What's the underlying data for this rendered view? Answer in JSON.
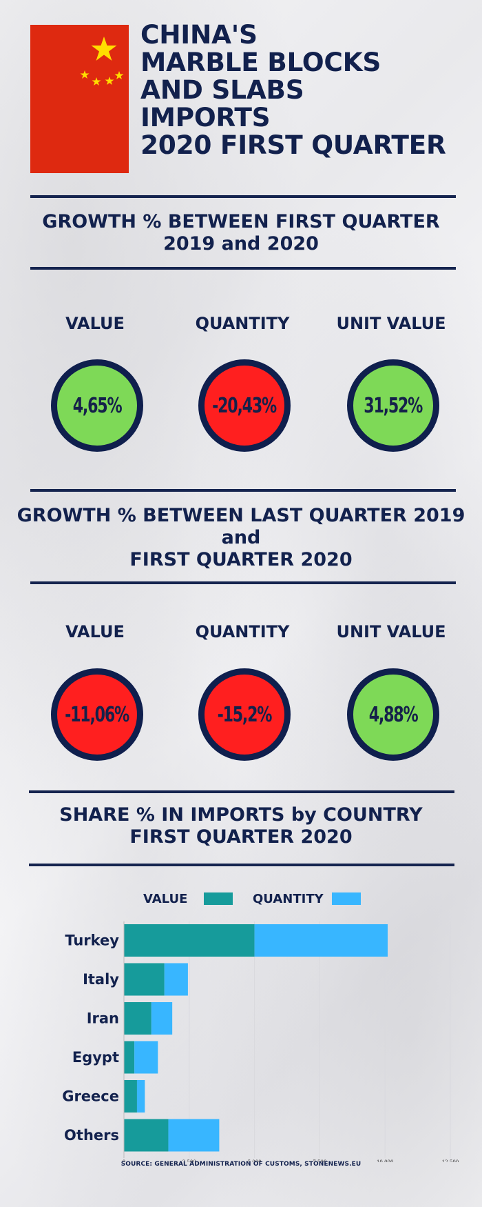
{
  "title_lines": [
    "CHINA'S",
    "MARBLE BLOCKS",
    "AND SLABS",
    "IMPORTS",
    "2020 FIRST QUARTER"
  ],
  "colors": {
    "flag_red": "#de2910",
    "flag_star": "#ffde00",
    "navy": "#12214d",
    "positive": "#7ed957",
    "negative": "#ff1f1f",
    "value_series": "#169b9b",
    "quantity_series": "#38b6ff"
  },
  "section1": {
    "title_line1": "GROWTH % BETWEEN FIRST QUARTER",
    "title_line2": "2019 and 2020",
    "metrics": [
      {
        "label": "VALUE",
        "value": "4,65%",
        "status": "positive"
      },
      {
        "label": "QUANTITY",
        "value": "-20,43%",
        "status": "negative"
      },
      {
        "label": "UNIT VALUE",
        "value": "31,52%",
        "status": "positive"
      }
    ]
  },
  "section2": {
    "title_line1": "GROWTH % BETWEEN LAST QUARTER 2019",
    "title_line2": "and",
    "title_line3": "FIRST QUARTER 2020",
    "metrics": [
      {
        "label": "VALUE",
        "value": "-11,06%",
        "status": "negative"
      },
      {
        "label": "QUANTITY",
        "value": "-15,2%",
        "status": "negative"
      },
      {
        "label": "UNIT VALUE",
        "value": "4,88%",
        "status": "positive"
      }
    ]
  },
  "section3": {
    "title_line1": "SHARE % IN IMPORTS by COUNTRY",
    "title_line2": "FIRST QUARTER 2020"
  },
  "chart_data": {
    "type": "bar",
    "orientation": "horizontal",
    "stacked": true,
    "categories": [
      "Turkey",
      "Italy",
      "Iran",
      "Egypt",
      "Greece",
      "Others"
    ],
    "series": [
      {
        "name": "VALUE",
        "values": [
          5000,
          1550,
          1050,
          400,
          500,
          1700
        ]
      },
      {
        "name": "QUANTITY",
        "values": [
          5100,
          900,
          800,
          900,
          300,
          1950
        ]
      }
    ],
    "xlim": [
      0,
      12500
    ],
    "xticks": [
      "0",
      "2,500",
      "5,000",
      "7,500",
      "10,000",
      "12,500"
    ],
    "xtick_values": [
      0,
      2500,
      5000,
      7500,
      10000,
      12500
    ],
    "grid": true,
    "legend_position": "top"
  },
  "source": "SOURCE: GENERAL ADMINISTRATION OF CUSTOMS, STONENEWS.EU"
}
